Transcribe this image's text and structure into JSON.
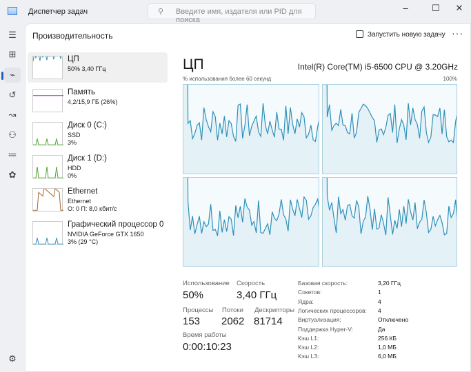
{
  "window": {
    "title": "Диспетчер задач",
    "search_placeholder": "Введите имя, издателя или PID для поиска",
    "minimize": "–",
    "maximize": "☐",
    "close": "✕"
  },
  "header": {
    "title": "Производительность",
    "run_task": "Запустить новую задачу",
    "more": "···"
  },
  "sidebar": [
    {
      "name": "ЦП",
      "l2": "50% 3,40 ГГц",
      "l3": "",
      "color": "#2f8fb8"
    },
    {
      "name": "Память",
      "l2": "4,2/15,9 ГБ (26%)",
      "l3": "",
      "color": "#8e3a9e"
    },
    {
      "name": "Диск 0 (C:)",
      "l2": "SSD",
      "l3": "3%",
      "color": "#4ea72e"
    },
    {
      "name": "Диск 1 (D:)",
      "l2": "HDD",
      "l3": "0%",
      "color": "#4ea72e"
    },
    {
      "name": "Ethernet",
      "l2": "Ethernet",
      "l3": "О: 0 П: 8,0 кбит/с",
      "color": "#a7652a"
    },
    {
      "name": "Графический процессор 0",
      "l2": "NVIDIA GeForce GTX 1650",
      "l3": "3% (29 °C)",
      "color": "#2f8fb8"
    }
  ],
  "main": {
    "title": "ЦП",
    "cpu_name": "Intel(R) Core(TM) i5-6500 CPU @ 3.20GHz",
    "graph_label": "% использования более 60 секунд",
    "graph_max": "100%",
    "accent": "#2f8fb8"
  },
  "stats": {
    "usage_label": "Использование",
    "usage": "50%",
    "speed_label": "Скорость",
    "speed": "3,40 ГГц",
    "proc_label": "Процессы",
    "proc": "153",
    "threads_label": "Потоки",
    "threads": "2062",
    "handles_label": "Дескрипторы",
    "handles": "81714",
    "uptime_label": "Время работы",
    "uptime": "0:00:10:23"
  },
  "props": [
    {
      "k": "Базовая скорость:",
      "v": "3,20 ГГц"
    },
    {
      "k": "Сокетов:",
      "v": "1"
    },
    {
      "k": "Ядра:",
      "v": "4"
    },
    {
      "k": "Логических процессоров:",
      "v": "4"
    },
    {
      "k": "Виртуализация:",
      "v": "Отключено"
    },
    {
      "k": "Поддержка Hyper-V:",
      "v": "Да"
    },
    {
      "k": "Кэш L1:",
      "v": "256 КБ"
    },
    {
      "k": "Кэш L2:",
      "v": "1,0 МБ"
    },
    {
      "k": "Кэш L3:",
      "v": "6,0 МБ"
    }
  ]
}
